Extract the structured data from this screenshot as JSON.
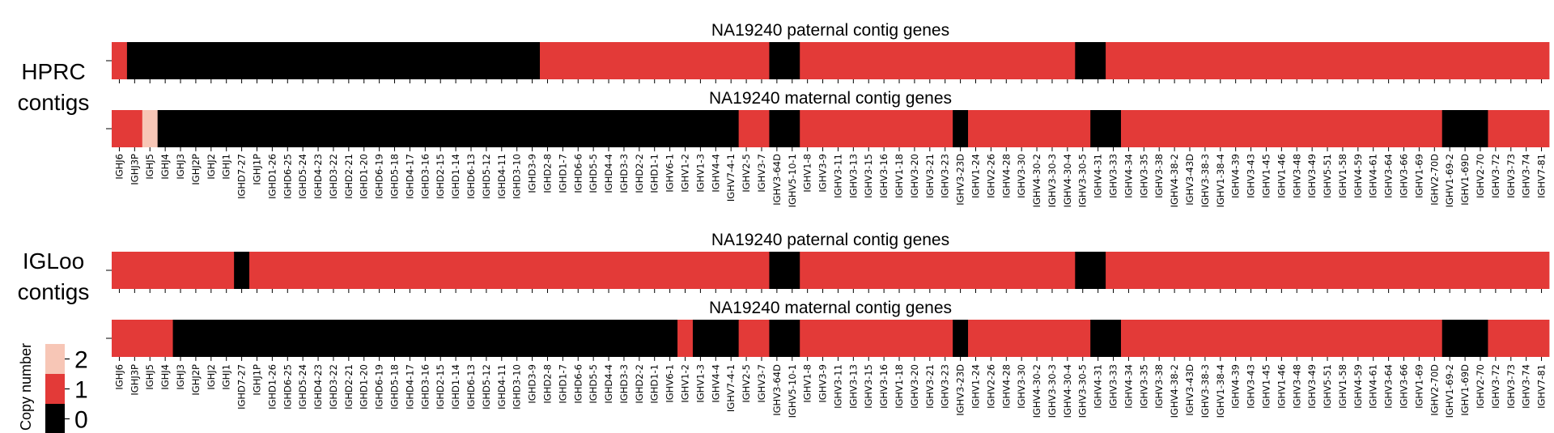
{
  "chart_data": {
    "type": "heatmap",
    "genes": [
      "IGHJ6",
      "IGHJ3P",
      "IGHJ5",
      "IGHJ4",
      "IGHJ3",
      "IGHJ2P",
      "IGHJ2",
      "IGHJ1",
      "IGHD7-27",
      "IGHJ1P",
      "IGHD1-26",
      "IGHD6-25",
      "IGHD5-24",
      "IGHD4-23",
      "IGHD3-22",
      "IGHD2-21",
      "IGHD1-20",
      "IGHD6-19",
      "IGHD5-18",
      "IGHD4-17",
      "IGHD3-16",
      "IGHD2-15",
      "IGHD1-14",
      "IGHD6-13",
      "IGHD5-12",
      "IGHD4-11",
      "IGHD3-10",
      "IGHD3-9",
      "IGHD2-8",
      "IGHD1-7",
      "IGHD6-6",
      "IGHD5-5",
      "IGHD4-4",
      "IGHD3-3",
      "IGHD2-2",
      "IGHD1-1",
      "IGHV6-1",
      "IGHV1-2",
      "IGHV1-3",
      "IGHV4-4",
      "IGHV7-4-1",
      "IGHV2-5",
      "IGHV3-7",
      "IGHV3-64D",
      "IGHV5-10-1",
      "IGHV1-8",
      "IGHV3-9",
      "IGHV3-11",
      "IGHV3-13",
      "IGHV3-15",
      "IGHV3-16",
      "IGHV1-18",
      "IGHV3-20",
      "IGHV3-21",
      "IGHV3-23",
      "IGHV3-23D",
      "IGHV1-24",
      "IGHV2-26",
      "IGHV4-28",
      "IGHV3-30",
      "IGHV4-30-2",
      "IGHV3-30-3",
      "IGHV4-30-4",
      "IGHV3-30-5",
      "IGHV4-31",
      "IGHV3-33",
      "IGHV4-34",
      "IGHV3-35",
      "IGHV3-38",
      "IGHV4-38-2",
      "IGHV3-43D",
      "IGHV3-38-3",
      "IGHV1-38-4",
      "IGHV4-39",
      "IGHV3-43",
      "IGHV1-45",
      "IGHV1-46",
      "IGHV3-48",
      "IGHV3-49",
      "IGHV5-51",
      "IGHV1-58",
      "IGHV4-59",
      "IGHV4-61",
      "IGHV3-64",
      "IGHV3-66",
      "IGHV1-69",
      "IGHV2-70D",
      "IGHV1-69-2",
      "IGHV1-69D",
      "IGHV2-70",
      "IGHV3-72",
      "IGHV3-73",
      "IGHV3-74",
      "IGHV7-81"
    ],
    "groups": [
      {
        "label": "HPRC\ncontigs",
        "panels": [
          {
            "title": "NA19240 paternal contig genes",
            "tick_label": "",
            "runs": [
              [
                1,
                1
              ],
              [
                0,
                27
              ],
              [
                1,
                15
              ],
              [
                0,
                2
              ],
              [
                1,
                18
              ],
              [
                0,
                2
              ],
              [
                1,
                29
              ]
            ]
          },
          {
            "title": "NA19240 maternal contig genes",
            "tick_label": "",
            "runs": [
              [
                1,
                2
              ],
              [
                2,
                1
              ],
              [
                0,
                38
              ],
              [
                1,
                2
              ],
              [
                0,
                2
              ],
              [
                1,
                10
              ],
              [
                0,
                1
              ],
              [
                1,
                8
              ],
              [
                0,
                2
              ],
              [
                1,
                21
              ],
              [
                0,
                3
              ],
              [
                1,
                4
              ]
            ]
          }
        ]
      },
      {
        "label": "IGLoo\ncontigs",
        "panels": [
          {
            "title": "NA19240 paternal contig genes",
            "tick_label": "",
            "runs": [
              [
                1,
                8
              ],
              [
                0,
                1
              ],
              [
                1,
                34
              ],
              [
                0,
                2
              ],
              [
                1,
                18
              ],
              [
                0,
                2
              ],
              [
                1,
                29
              ]
            ]
          },
          {
            "title": "NA19240 maternal contig genes",
            "tick_label": "",
            "runs": [
              [
                1,
                4
              ],
              [
                0,
                33
              ],
              [
                1,
                1
              ],
              [
                0,
                3
              ],
              [
                1,
                2
              ],
              [
                0,
                2
              ],
              [
                1,
                10
              ],
              [
                0,
                1
              ],
              [
                1,
                8
              ],
              [
                0,
                2
              ],
              [
                1,
                21
              ],
              [
                0,
                3
              ],
              [
                1,
                4
              ]
            ]
          }
        ]
      }
    ],
    "legend": {
      "title": "Copy number",
      "levels": [
        {
          "value": "2",
          "color": "#f7c6b6"
        },
        {
          "value": "1",
          "color": "#e33a38"
        },
        {
          "value": "0",
          "color": "#000000"
        }
      ]
    },
    "colors": {
      "2": "#f7c6b6",
      "1": "#e33a38",
      "0": "#000000"
    }
  }
}
